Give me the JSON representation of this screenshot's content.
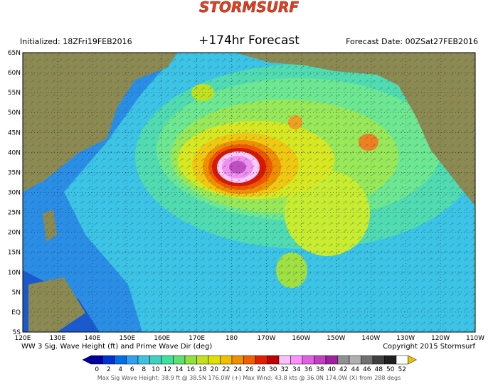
{
  "header": {
    "logo": "STORMSURF",
    "initialized": "Initialized: 18ZFri19FEB2016",
    "title": "+174hr Forecast",
    "forecast_date": "Forecast Date: 00ZSat27FEB2016"
  },
  "lat_labels": [
    "65N",
    "60N",
    "55N",
    "50N",
    "45N",
    "40N",
    "35N",
    "30N",
    "25N",
    "20N",
    "15N",
    "10N",
    "5N",
    "EQ",
    "5S"
  ],
  "lon_labels": [
    "120E",
    "130E",
    "140E",
    "150E",
    "160E",
    "170E",
    "180",
    "170W",
    "160W",
    "150W",
    "140W",
    "130W",
    "120W",
    "110W"
  ],
  "footer": {
    "caption": "WW 3 Sig. Wave Height (ft) and Prime Wave Dir (deg)",
    "copyright": "Copyright 2015 Stormsurf"
  },
  "scale": {
    "labels": [
      "0",
      "2",
      "4",
      "6",
      "8",
      "10",
      "12",
      "14",
      "16",
      "18",
      "20",
      "22",
      "24",
      "26",
      "28",
      "30",
      "32",
      "34",
      "36",
      "38",
      "40",
      "42",
      "44",
      "46",
      "48",
      "50",
      "52"
    ]
  },
  "stats": "Max Sig Wave Height: 38.9 ft @ 38.5N 176.0W (+)    Max Wind: 43.8 kts @ 36.0N 174.0W (X) from 288 degs"
}
